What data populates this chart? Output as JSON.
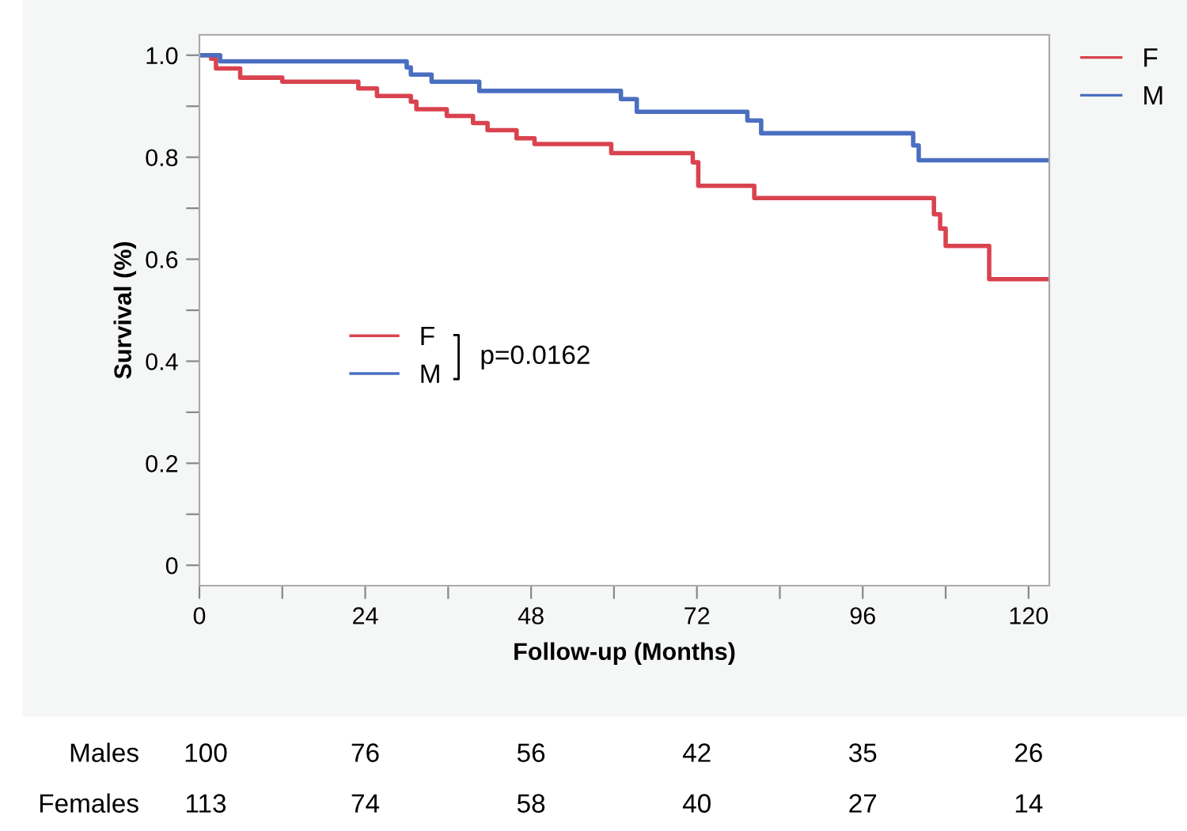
{
  "chart_data": {
    "type": "step",
    "xlabel": "Follow-up (Months)",
    "ylabel": "Survival (%)",
    "xlim": [
      0,
      123
    ],
    "ylim": [
      -0.04,
      1.04
    ],
    "xticks": [
      0,
      {
        "value": 12,
        "label": null
      },
      24,
      {
        "value": 36,
        "label": null
      },
      48,
      {
        "value": 60,
        "label": null
      },
      72,
      {
        "value": 84,
        "label": null
      },
      96,
      {
        "value": 108,
        "label": null
      },
      120
    ],
    "yticks": [
      0,
      {
        "value": 0.1,
        "label": null
      },
      0.2,
      {
        "value": 0.3,
        "label": null
      },
      0.4,
      {
        "value": 0.5,
        "label": null
      },
      0.6,
      {
        "value": 0.7,
        "label": null
      },
      0.8,
      {
        "value": 0.9,
        "label": null
      },
      {
        "value": 1.0,
        "label": "1.0"
      }
    ],
    "series": [
      {
        "name": "F",
        "color": "#d9434f",
        "x": [
          0,
          1.7,
          2.4,
          5.9,
          12,
          23,
          25.7,
          30.6,
          31.4,
          35.8,
          39.6,
          41.7,
          45.9,
          48.5,
          59.6,
          71.4,
          72.2,
          80.3,
          106.3,
          107.2,
          108,
          114.3,
          123
        ],
        "values": [
          1.0,
          0.993,
          0.974,
          0.956,
          0.948,
          0.935,
          0.92,
          0.909,
          0.894,
          0.881,
          0.867,
          0.853,
          0.837,
          0.826,
          0.808,
          0.79,
          0.744,
          0.72,
          0.688,
          0.66,
          0.626,
          0.561,
          0.561
        ]
      },
      {
        "name": "M",
        "color": "#4a6fc0",
        "x": [
          0,
          3,
          30,
          30.6,
          31.5,
          33.6,
          40.5,
          61,
          63.3,
          79.3,
          81.3,
          103.3,
          104.1,
          123
        ],
        "values": [
          1.0,
          0.988,
          0.976,
          0.962,
          0.962,
          0.948,
          0.93,
          0.914,
          0.889,
          0.872,
          0.847,
          0.823,
          0.794,
          0.794
        ]
      }
    ],
    "legend": "top right",
    "grid": false,
    "line_style": "solid",
    "marker": "none",
    "annotations": [
      "p=0.0162",
      "Males",
      "100",
      "76",
      "56",
      "42",
      "35",
      "26",
      "Females",
      "113",
      "74",
      "58",
      "40",
      "27",
      "14"
    ]
  }
}
